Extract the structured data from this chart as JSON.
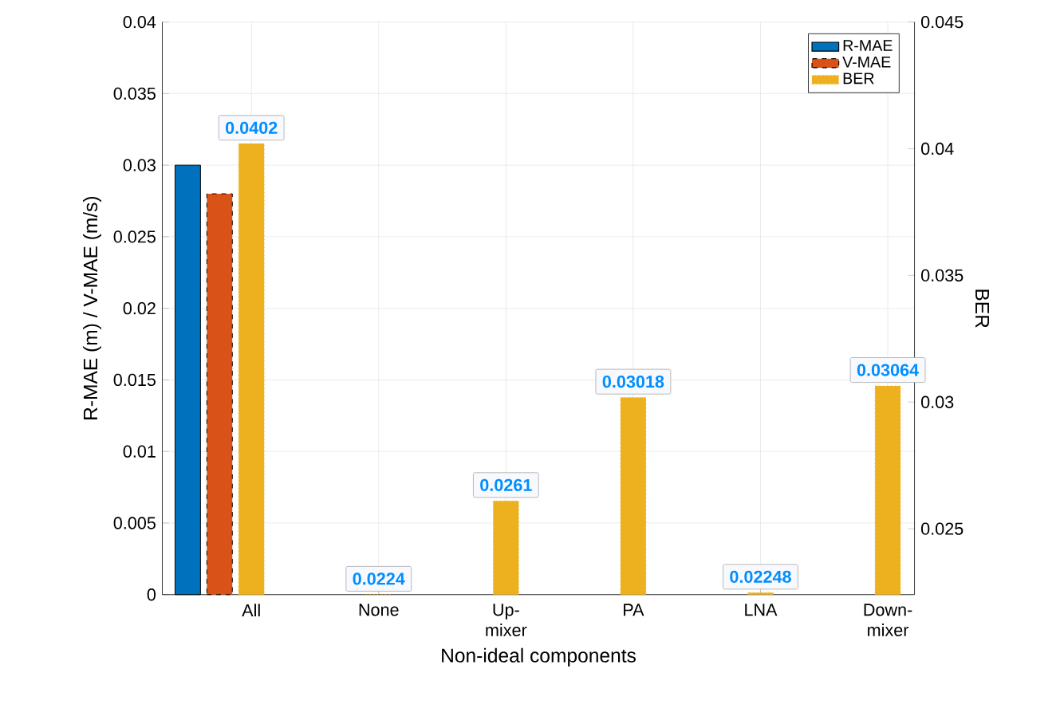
{
  "chart_data": {
    "type": "bar",
    "xlabel": "Non-ideal components",
    "ylabel": "R-MAE (m) / V-MAE (m/s)",
    "y2label": "BER",
    "categories": [
      "All",
      "None",
      "Up-mixer",
      "PA",
      "LNA",
      "Down-mixer"
    ],
    "series": [
      {
        "name": "R-MAE",
        "color": "#0072bd",
        "line_style": "solid",
        "values": [
          0.03,
          null,
          null,
          null,
          null,
          null
        ]
      },
      {
        "name": "V-MAE",
        "color": "#d95319",
        "line_style": "dashed",
        "values": [
          0.028,
          null,
          null,
          null,
          null,
          null
        ]
      },
      {
        "name": "BER",
        "color": "#edb120",
        "line_style": "dotted",
        "axis": "y2",
        "values": [
          0.0402,
          0.0224,
          0.0261,
          0.03018,
          0.02248,
          0.03064
        ],
        "value_labels": [
          "0.0402",
          "0.0224",
          "0.0261",
          "0.03018",
          "0.02248",
          "0.03064"
        ]
      }
    ],
    "ylim": [
      0,
      0.04
    ],
    "yticks": [
      0,
      0.005,
      0.01,
      0.015,
      0.02,
      0.025,
      0.03,
      0.035,
      0.04
    ],
    "y2lim": [
      0.0224,
      0.045
    ],
    "y2ticks": [
      0.025,
      0.03,
      0.035,
      0.04,
      0.045
    ],
    "grid": true,
    "legend": "top right"
  }
}
